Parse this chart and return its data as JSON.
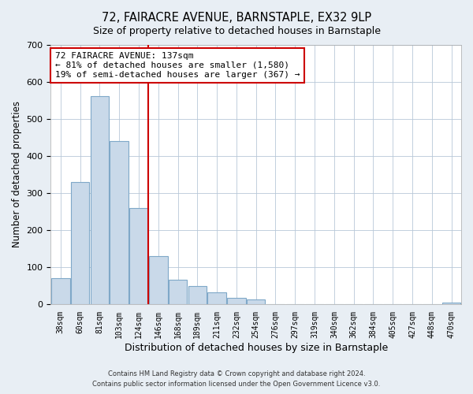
{
  "title": "72, FAIRACRE AVENUE, BARNSTAPLE, EX32 9LP",
  "subtitle": "Size of property relative to detached houses in Barnstaple",
  "xlabel": "Distribution of detached houses by size in Barnstaple",
  "ylabel": "Number of detached properties",
  "bar_labels": [
    "38sqm",
    "60sqm",
    "81sqm",
    "103sqm",
    "124sqm",
    "146sqm",
    "168sqm",
    "189sqm",
    "211sqm",
    "232sqm",
    "254sqm",
    "276sqm",
    "297sqm",
    "319sqm",
    "340sqm",
    "362sqm",
    "384sqm",
    "405sqm",
    "427sqm",
    "448sqm",
    "470sqm"
  ],
  "bar_values": [
    70,
    330,
    560,
    440,
    260,
    130,
    65,
    50,
    33,
    18,
    13,
    0,
    0,
    0,
    0,
    0,
    0,
    0,
    0,
    0,
    5
  ],
  "bar_color": "#c9d9e9",
  "bar_edge_color": "#7fa8c8",
  "ylim": [
    0,
    700
  ],
  "yticks": [
    0,
    100,
    200,
    300,
    400,
    500,
    600,
    700
  ],
  "property_line_color": "#cc0000",
  "annotation_title": "72 FAIRACRE AVENUE: 137sqm",
  "annotation_line1": "← 81% of detached houses are smaller (1,580)",
  "annotation_line2": "19% of semi-detached houses are larger (367) →",
  "annotation_box_color": "#ffffff",
  "annotation_box_edge": "#cc0000",
  "footer_line1": "Contains HM Land Registry data © Crown copyright and database right 2024.",
  "footer_line2": "Contains public sector information licensed under the Open Government Licence v3.0.",
  "background_color": "#e8eef4",
  "plot_background_color": "#ffffff",
  "grid_color": "#b8c8d8"
}
